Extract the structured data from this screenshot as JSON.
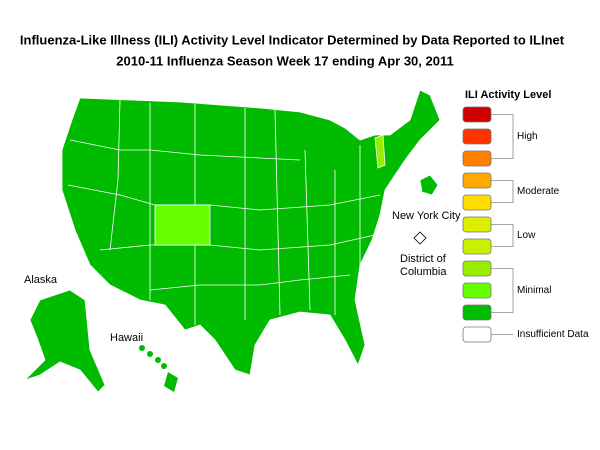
{
  "header": {
    "title": "Influenza-Like Illness (ILI) Activity Level Indicator Determined by Data Reported to ILInet",
    "subtitle": "2010-11  Influenza Season Week  17 ending Apr 30, 2011"
  },
  "map_labels": {
    "alaska": "Alaska",
    "hawaii": "Hawaii",
    "nyc": "New York City",
    "dc": [
      "District of",
      "Columbia"
    ]
  },
  "legend": {
    "title": "ILI Activity Level",
    "groups": [
      {
        "label": "High",
        "colors": [
          "#cc0000",
          "#ff3300",
          "#ff7f00"
        ]
      },
      {
        "label": "Moderate",
        "colors": [
          "#ffaa00",
          "#ffdd00"
        ]
      },
      {
        "label": "Low",
        "colors": [
          "#ddee00",
          "#c8f000"
        ]
      },
      {
        "label": "Minimal",
        "colors": [
          "#99ee00",
          "#66ff00",
          "#00bb00"
        ]
      },
      {
        "label": "Insufficient Data",
        "colors": [
          "#ffffff"
        ]
      }
    ]
  }
}
